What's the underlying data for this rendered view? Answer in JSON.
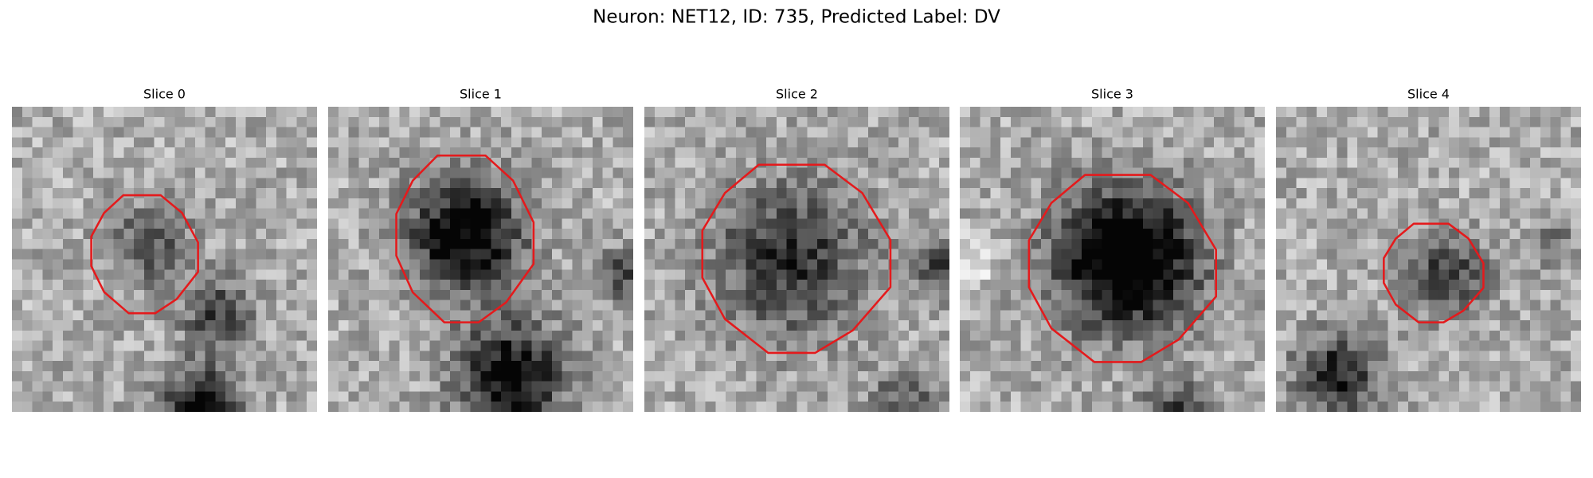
{
  "header": {
    "title": "Neuron: NET12, ID: 735, Predicted Label: DV"
  },
  "panels": [
    {
      "title": "Slice 0"
    },
    {
      "title": "Slice 1"
    },
    {
      "title": "Slice 2"
    },
    {
      "title": "Slice 3"
    },
    {
      "title": "Slice 4"
    }
  ]
}
